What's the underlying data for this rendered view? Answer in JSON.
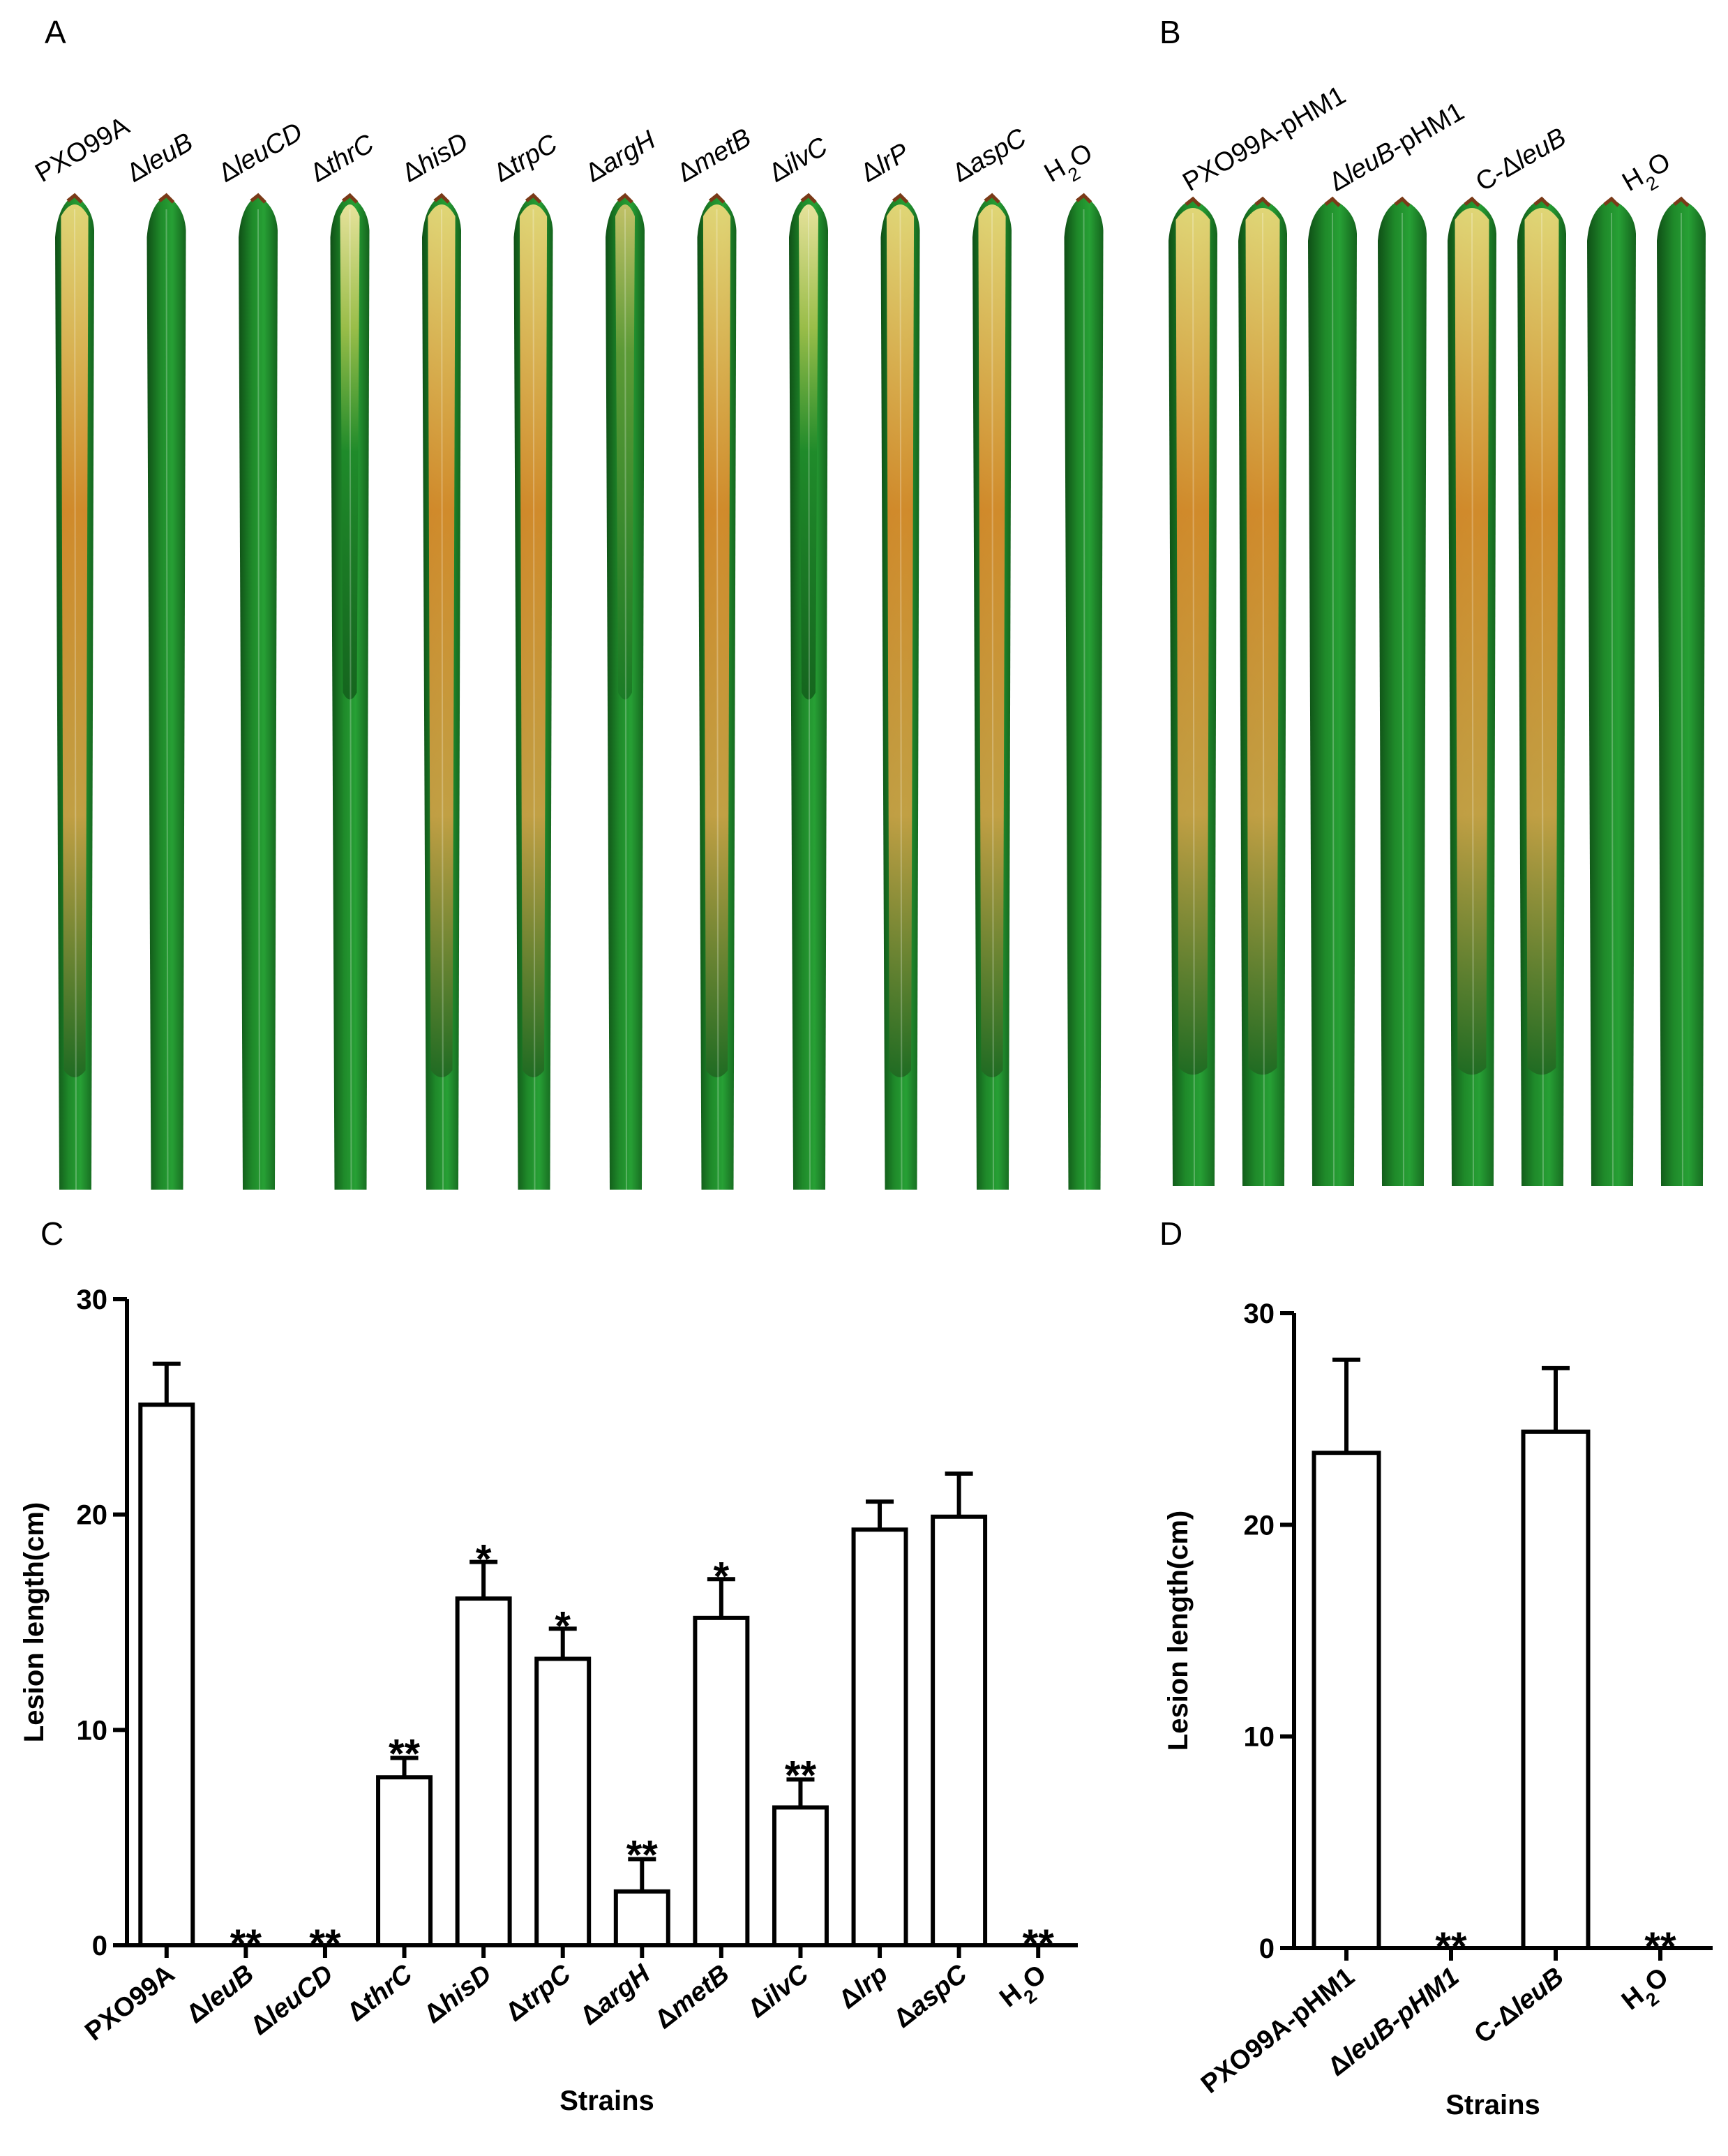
{
  "panels": {
    "A": {
      "letter": "A",
      "leaf_labels": [
        "PXO99A",
        "ΔleuB",
        "ΔleuCD",
        "ΔthrC",
        "ΔhisD",
        "ΔtrpC",
        "ΔargH",
        "ΔmetB",
        "ΔilvC",
        "ΔlrP",
        "ΔaspC",
        "H2O"
      ],
      "leaf_phenotype": [
        "lesion",
        "healthy",
        "healthy",
        "partial",
        "lesion",
        "lesion",
        "mild",
        "lesion",
        "partial",
        "lesion",
        "lesion",
        "healthy"
      ]
    },
    "B": {
      "letter": "B",
      "leaf_labels": [
        "PXO99A-pHM1",
        "ΔleuB-pHM1",
        "C-ΔleuB",
        "H2O"
      ],
      "leaf_phenotype": [
        "lesion",
        "lesion",
        "healthy",
        "healthy",
        "lesion",
        "lesion",
        "healthy",
        "healthy"
      ]
    },
    "C": {
      "letter": "C"
    },
    "D": {
      "letter": "D"
    }
  },
  "chart_data": [
    {
      "type": "bar",
      "panel": "C",
      "categories": [
        "PXO99A",
        "ΔleuB",
        "ΔleuCD",
        "ΔthrC",
        "ΔhisD",
        "ΔtrpC",
        "ΔargH",
        "ΔmetB",
        "ΔilvC",
        "Δlrp",
        "ΔaspC",
        "H2O"
      ],
      "values": [
        25.1,
        0,
        0,
        7.8,
        16.1,
        13.3,
        2.5,
        15.2,
        6.4,
        19.3,
        19.9,
        0
      ],
      "errors": [
        1.9,
        0,
        0,
        0.9,
        1.7,
        1.4,
        1.5,
        1.8,
        1.3,
        1.3,
        2.0,
        0
      ],
      "significance": [
        "",
        "**",
        "**",
        "**",
        "*",
        "*",
        "**",
        "*",
        "**",
        "",
        "",
        "**"
      ],
      "title": "",
      "xlabel": "Strains",
      "ylabel": "Lesion length(cm)",
      "ylim": [
        0,
        30
      ],
      "yticks": [
        "0",
        "10",
        "20",
        "30"
      ]
    },
    {
      "type": "bar",
      "panel": "D",
      "categories": [
        "PXO99A-pHM1",
        "ΔleuB-pHM1",
        "C-ΔleuB",
        "H2O"
      ],
      "values": [
        23.4,
        0,
        24.4,
        0
      ],
      "errors": [
        4.4,
        0,
        3.0,
        0
      ],
      "significance": [
        "",
        "**",
        "",
        "**"
      ],
      "title": "",
      "xlabel": "Strains",
      "ylabel": "Lesion length(cm)",
      "ylim": [
        0,
        30
      ],
      "yticks": [
        "0",
        "10",
        "20",
        "30"
      ]
    }
  ],
  "colors": {
    "leaf_green": "#1f8a2a",
    "leaf_dark": "#0f4f16",
    "lesion_yellow": "#e7cf6a",
    "lesion_orange": "#d98a2b",
    "bar_fill": "#ffffff",
    "axis": "#000000"
  }
}
